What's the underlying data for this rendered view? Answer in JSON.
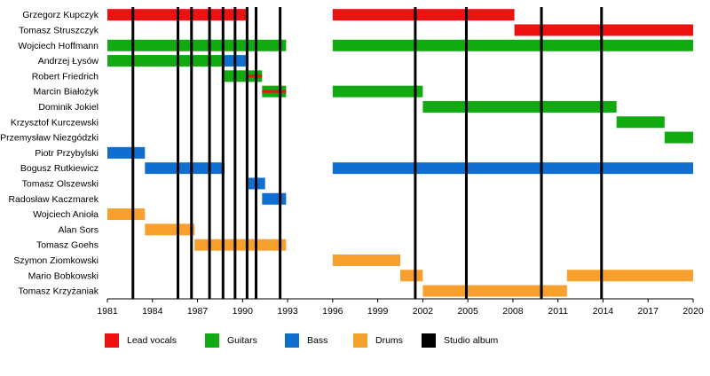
{
  "chart_data": {
    "type": "timeline",
    "title": "",
    "x_axis": {
      "min": 1981,
      "max": 2020,
      "ticks": [
        1981,
        1984,
        1987,
        1990,
        1993,
        1996,
        1999,
        2002,
        2005,
        2008,
        2011,
        2014,
        2017,
        2020
      ]
    },
    "roles": [
      {
        "key": "vocals",
        "name": "Lead vocals",
        "color": "#ee1111"
      },
      {
        "key": "guitars",
        "name": "Guitars",
        "color": "#11aa11"
      },
      {
        "key": "bass",
        "name": "Bass",
        "color": "#0f6ecf"
      },
      {
        "key": "drums",
        "name": "Drums",
        "color": "#f8a02e"
      },
      {
        "key": "album",
        "name": "Studio album",
        "color": "#000000"
      }
    ],
    "members": [
      {
        "name": "Grzegorz Kupczyk",
        "periods": [
          {
            "role": "vocals",
            "start": 1981,
            "end": 1990.4
          },
          {
            "role": "vocals",
            "start": 1996,
            "end": 2008.1
          }
        ]
      },
      {
        "name": "Tomasz Struszczyk",
        "periods": [
          {
            "role": "vocals",
            "start": 2008.1,
            "end": 2020
          }
        ]
      },
      {
        "name": "Wojciech Hoffmann",
        "periods": [
          {
            "role": "guitars",
            "start": 1981,
            "end": 1992.9
          },
          {
            "role": "guitars",
            "start": 1996,
            "end": 2020
          }
        ]
      },
      {
        "name": "Andrzej Łysów",
        "periods": [
          {
            "role": "guitars",
            "start": 1981,
            "end": 1988.8
          },
          {
            "role": "bass",
            "start": 1988.8,
            "end": 1990.4
          }
        ]
      },
      {
        "name": "Robert Friedrich",
        "periods": [
          {
            "role": "guitars",
            "start": 1988.8,
            "end": 1991.3
          },
          {
            "role": "vocals",
            "start": 1990.4,
            "end": 1991.3,
            "stripe": true
          }
        ]
      },
      {
        "name": "Marcin Białożyk",
        "periods": [
          {
            "role": "guitars",
            "start": 1991.3,
            "end": 1992.9
          },
          {
            "role": "vocals",
            "start": 1991.3,
            "end": 1992.9,
            "stripe": true
          },
          {
            "role": "guitars",
            "start": 1996,
            "end": 2002
          }
        ]
      },
      {
        "name": "Dominik Jokiel",
        "periods": [
          {
            "role": "guitars",
            "start": 2002,
            "end": 2014.9
          }
        ]
      },
      {
        "name": "Krzysztof Kurczewski",
        "periods": [
          {
            "role": "guitars",
            "start": 2014.9,
            "end": 2018.1
          }
        ]
      },
      {
        "name": "Przemysław Niezgódzki",
        "periods": [
          {
            "role": "guitars",
            "start": 2018.1,
            "end": 2020
          }
        ]
      },
      {
        "name": "Piotr Przybylski",
        "periods": [
          {
            "role": "bass",
            "start": 1981,
            "end": 1983.5
          }
        ]
      },
      {
        "name": "Bogusz Rutkiewicz",
        "periods": [
          {
            "role": "bass",
            "start": 1983.5,
            "end": 1988.8
          },
          {
            "role": "bass",
            "start": 1996,
            "end": 2020
          }
        ]
      },
      {
        "name": "Tomasz Olszewski",
        "periods": [
          {
            "role": "bass",
            "start": 1990.4,
            "end": 1991.5
          }
        ]
      },
      {
        "name": "Radosław Kaczmarek",
        "periods": [
          {
            "role": "bass",
            "start": 1991.3,
            "end": 1992.9
          }
        ]
      },
      {
        "name": "Wojciech Anioła",
        "periods": [
          {
            "role": "drums",
            "start": 1981,
            "end": 1983.5
          }
        ]
      },
      {
        "name": "Alan Sors",
        "periods": [
          {
            "role": "drums",
            "start": 1983.5,
            "end": 1986.8
          }
        ]
      },
      {
        "name": "Tomasz Goehs",
        "periods": [
          {
            "role": "drums",
            "start": 1986.8,
            "end": 1992.9
          }
        ]
      },
      {
        "name": "Szymon Ziomkowski",
        "periods": [
          {
            "role": "drums",
            "start": 1996,
            "end": 2000.5
          }
        ]
      },
      {
        "name": "Mario Bobkowski",
        "periods": [
          {
            "role": "drums",
            "start": 2000.5,
            "end": 2002
          },
          {
            "role": "drums",
            "start": 2011.6,
            "end": 2020
          }
        ]
      },
      {
        "name": "Tomasz Krzyżaniak",
        "periods": [
          {
            "role": "drums",
            "start": 2002,
            "end": 2011.6
          }
        ]
      }
    ],
    "albums": [
      1982.7,
      1985.7,
      1986.6,
      1987.8,
      1988.7,
      1989.5,
      1990.3,
      1990.9,
      1992.5,
      2001.5,
      2004.9,
      2009.9,
      2013.9
    ]
  }
}
